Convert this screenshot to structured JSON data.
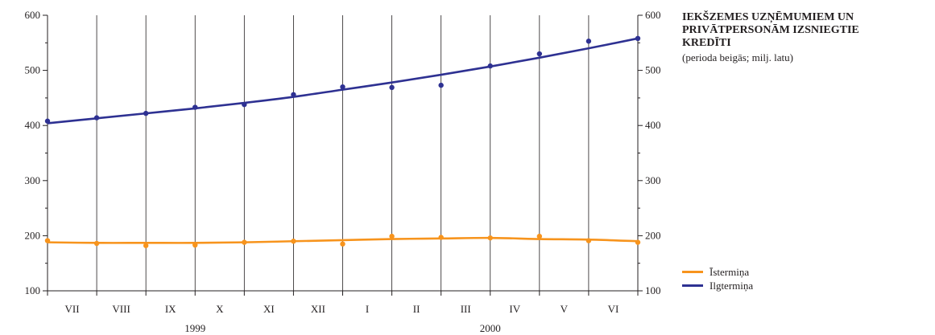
{
  "chart_data": {
    "type": "line",
    "title": "IEKŠZEMES UZŅĒMUMIEM UN\nPRIVĀTPERSONĀM IZSNIEGTIE\nKREDĪTI",
    "subtitle": "(perioda beigās; milj. latu)",
    "ylim": [
      100,
      600
    ],
    "yticks": [
      100,
      200,
      300,
      400,
      500,
      600
    ],
    "y_axis_both_sides": true,
    "grid": "vertical",
    "months": [
      "VII",
      "VIII",
      "IX",
      "X",
      "XI",
      "XII",
      "I",
      "II",
      "III",
      "IV",
      "V",
      "VI"
    ],
    "years": [
      {
        "label": "1999",
        "from": 0,
        "to": 6
      },
      {
        "label": "2000",
        "from": 6,
        "to": 12
      }
    ],
    "x_points": [
      0,
      1,
      2,
      3,
      4,
      5,
      6,
      7,
      8,
      9,
      10,
      11,
      12
    ],
    "legend_position": "bottom-right",
    "series": [
      {
        "name": "Īstermiņa",
        "color": "#f7941d",
        "values": [
          191,
          186,
          182,
          183,
          188,
          190,
          185,
          199,
          197,
          196,
          199,
          191,
          188
        ],
        "trend": [
          188,
          187,
          187,
          187,
          188,
          190,
          192,
          194,
          195,
          196,
          194,
          193,
          190
        ]
      },
      {
        "name": "Ilgtermiņa",
        "color": "#2e3192",
        "values": [
          408,
          414,
          422,
          433,
          438,
          456,
          470,
          469,
          473,
          508,
          530,
          553,
          558
        ],
        "trend": [
          404,
          413,
          422,
          431,
          441,
          452,
          465,
          478,
          492,
          507,
          523,
          540,
          558
        ]
      }
    ]
  }
}
